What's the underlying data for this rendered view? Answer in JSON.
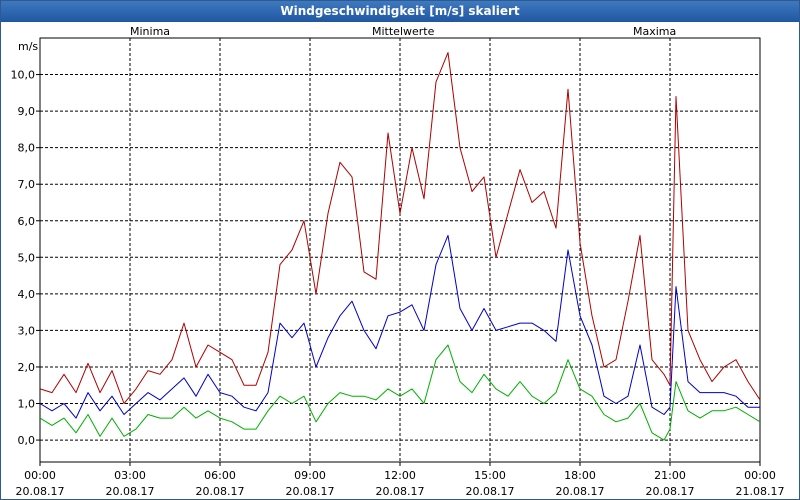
{
  "window": {
    "title": "Windgeschwindigkeit [m/s] skaliert"
  },
  "colors": {
    "minima": "#00b000",
    "mittelwerte": "#0000c8",
    "maxima": "#b00000",
    "grid": "#000000",
    "title_bg": "#2a64ad"
  },
  "chart_data": {
    "type": "line",
    "title": "Windgeschwindigkeit [m/s] skaliert",
    "ylabel": "m/s",
    "xlabel": "",
    "ylim": [
      -0.6,
      11.0
    ],
    "xlim": [
      0,
      24
    ],
    "grid": true,
    "legend": [
      "Minima",
      "Mittelwerte",
      "Maxima"
    ],
    "y_ticks": [
      "0,0",
      "1,0",
      "2,0",
      "3,0",
      "4,0",
      "5,0",
      "6,0",
      "7,0",
      "8,0",
      "9,0",
      "10,0"
    ],
    "x_ticks": [
      {
        "time": "00:00",
        "date": "20.08.17"
      },
      {
        "time": "03:00",
        "date": "20.08.17"
      },
      {
        "time": "06:00",
        "date": "20.08.17"
      },
      {
        "time": "09:00",
        "date": "20.08.17"
      },
      {
        "time": "12:00",
        "date": "20.08.17"
      },
      {
        "time": "15:00",
        "date": "20.08.17"
      },
      {
        "time": "18:00",
        "date": "20.08.17"
      },
      {
        "time": "21:00",
        "date": "20.08.17"
      },
      {
        "time": "00:00",
        "date": "21.08.17"
      }
    ],
    "x": [
      0,
      0.4,
      0.8,
      1.2,
      1.6,
      2,
      2.4,
      2.8,
      3.2,
      3.6,
      4,
      4.4,
      4.8,
      5.2,
      5.6,
      6,
      6.4,
      6.8,
      7.2,
      7.6,
      8,
      8.4,
      8.8,
      9.2,
      9.6,
      10,
      10.4,
      10.8,
      11.2,
      11.6,
      12,
      12.4,
      12.8,
      13.2,
      13.6,
      14,
      14.4,
      14.8,
      15.2,
      15.6,
      16,
      16.4,
      16.8,
      17.2,
      17.6,
      18,
      18.4,
      18.8,
      19.2,
      19.6,
      20,
      20.4,
      20.8,
      21,
      21.2,
      21.6,
      22,
      22.4,
      22.8,
      23.2,
      23.6,
      24
    ],
    "series": [
      {
        "name": "Maxima",
        "values": [
          1.4,
          1.3,
          1.8,
          1.3,
          2.1,
          1.3,
          1.9,
          1.0,
          1.4,
          1.9,
          1.8,
          2.2,
          3.2,
          2.0,
          2.6,
          2.4,
          2.2,
          1.5,
          1.5,
          2.4,
          4.8,
          5.2,
          6.0,
          4.0,
          6.2,
          7.6,
          7.2,
          4.6,
          4.4,
          8.4,
          6.2,
          8.0,
          6.6,
          9.8,
          10.6,
          8.0,
          6.8,
          7.2,
          5.0,
          6.2,
          7.4,
          6.5,
          6.8,
          5.8,
          9.6,
          5.4,
          3.4,
          2.0,
          2.2,
          3.8,
          5.6,
          2.2,
          1.8,
          1.5,
          9.4,
          3.0,
          2.2,
          1.6,
          2.0,
          2.2,
          1.6,
          1.1
        ]
      },
      {
        "name": "Mittelwerte",
        "values": [
          1.0,
          0.8,
          1.0,
          0.6,
          1.3,
          0.8,
          1.2,
          0.7,
          1.0,
          1.3,
          1.1,
          1.4,
          1.7,
          1.2,
          1.8,
          1.3,
          1.2,
          0.9,
          0.8,
          1.3,
          3.2,
          2.8,
          3.2,
          2.0,
          2.8,
          3.4,
          3.8,
          3.0,
          2.5,
          3.4,
          3.5,
          3.7,
          3.0,
          4.8,
          5.6,
          3.6,
          3.0,
          3.6,
          3.0,
          3.1,
          3.2,
          3.2,
          3.0,
          2.7,
          5.2,
          3.4,
          2.6,
          1.2,
          1.0,
          1.2,
          2.6,
          0.9,
          0.7,
          0.9,
          4.2,
          1.6,
          1.3,
          1.3,
          1.3,
          1.2,
          0.9,
          0.9
        ]
      },
      {
        "name": "Minima",
        "values": [
          0.6,
          0.4,
          0.6,
          0.2,
          0.7,
          0.1,
          0.6,
          0.1,
          0.3,
          0.7,
          0.6,
          0.6,
          0.9,
          0.6,
          0.8,
          0.6,
          0.5,
          0.3,
          0.3,
          0.8,
          1.2,
          1.0,
          1.2,
          0.5,
          1.0,
          1.3,
          1.2,
          1.2,
          1.1,
          1.4,
          1.2,
          1.4,
          1.0,
          2.2,
          2.6,
          1.6,
          1.3,
          1.8,
          1.4,
          1.2,
          1.6,
          1.2,
          1.0,
          1.3,
          2.2,
          1.4,
          1.2,
          0.7,
          0.5,
          0.6,
          1.0,
          0.2,
          0.0,
          0.3,
          1.6,
          0.8,
          0.6,
          0.8,
          0.8,
          0.9,
          0.7,
          0.5
        ]
      }
    ]
  }
}
